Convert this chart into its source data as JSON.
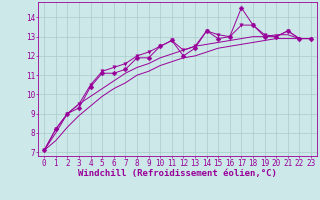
{
  "background_color": "#cce8e8",
  "grid_color": "#aacccc",
  "line_color": "#990099",
  "xlabel": "Windchill (Refroidissement éolien,°C)",
  "xlabel_fontsize": 6.5,
  "tick_fontsize": 5.5,
  "xlim": [
    -0.5,
    23.5
  ],
  "ylim": [
    6.8,
    14.8
  ],
  "yticks": [
    7,
    8,
    9,
    10,
    11,
    12,
    13,
    14
  ],
  "xticks": [
    0,
    1,
    2,
    3,
    4,
    5,
    6,
    7,
    8,
    9,
    10,
    11,
    12,
    13,
    14,
    15,
    16,
    17,
    18,
    19,
    20,
    21,
    22,
    23
  ],
  "series": [
    [
      7.1,
      8.2,
      9.0,
      9.3,
      10.4,
      11.1,
      11.1,
      11.3,
      11.9,
      11.9,
      12.5,
      12.8,
      12.0,
      12.4,
      13.3,
      12.9,
      13.0,
      14.5,
      13.6,
      13.0,
      13.0,
      13.3,
      12.9,
      12.9
    ],
    [
      7.1,
      8.2,
      9.0,
      9.5,
      10.5,
      11.2,
      11.4,
      11.6,
      12.0,
      12.2,
      12.5,
      12.8,
      12.3,
      12.5,
      13.3,
      13.1,
      13.0,
      13.6,
      13.6,
      13.1,
      13.0,
      13.3,
      12.9,
      12.9
    ],
    [
      7.1,
      8.0,
      9.0,
      9.5,
      9.9,
      10.3,
      10.7,
      11.1,
      11.4,
      11.6,
      11.9,
      12.1,
      12.3,
      12.5,
      12.6,
      12.7,
      12.8,
      12.9,
      13.0,
      13.0,
      13.1,
      13.1,
      12.9,
      12.9
    ],
    [
      7.1,
      7.6,
      8.3,
      8.9,
      9.4,
      9.9,
      10.3,
      10.6,
      11.0,
      11.2,
      11.5,
      11.7,
      11.9,
      12.0,
      12.2,
      12.4,
      12.5,
      12.6,
      12.7,
      12.8,
      12.9,
      12.9,
      12.9,
      12.9
    ]
  ],
  "has_markers": [
    true,
    true,
    false,
    false
  ]
}
